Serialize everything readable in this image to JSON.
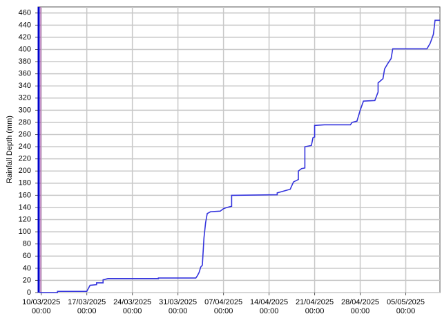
{
  "chart_data": {
    "type": "line",
    "y_label": "Rainfall Depth (mm)",
    "x": [
      "2025-03-09T18:00",
      "2025-03-12T12:00",
      "2025-03-12T12:00",
      "2025-03-17T00:00",
      "2025-03-17T12:00",
      "2025-03-18T12:00",
      "2025-03-18T12:00",
      "2025-03-19T12:00",
      "2025-03-19T12:00",
      "2025-03-20T06:00",
      "2025-03-28T00:00",
      "2025-03-28T00:00",
      "2025-04-02T18:00",
      "2025-04-03T00:00",
      "2025-04-03T06:00",
      "2025-04-03T12:00",
      "2025-04-03T18:00",
      "2025-04-04T00:00",
      "2025-04-04T06:00",
      "2025-04-04T12:00",
      "2025-04-05T00:00",
      "2025-04-06T12:00",
      "2025-04-07T00:00",
      "2025-04-07T12:00",
      "2025-04-08T06:00",
      "2025-04-08T06:00",
      "2025-04-15T06:00",
      "2025-04-15T06:00",
      "2025-04-16T06:00",
      "2025-04-17T06:00",
      "2025-04-17T18:00",
      "2025-04-18T12:00",
      "2025-04-18T12:00",
      "2025-04-19T00:00",
      "2025-04-19T12:00",
      "2025-04-19T12:00",
      "2025-04-20T12:00",
      "2025-04-20T18:00",
      "2025-04-21T00:00",
      "2025-04-21T00:00",
      "2025-04-22T12:00",
      "2025-04-26T12:00",
      "2025-04-26T18:00",
      "2025-04-27T12:00",
      "2025-04-28T00:00",
      "2025-04-28T12:00",
      "2025-04-30T06:00",
      "2025-04-30T18:00",
      "2025-04-30T18:00",
      "2025-05-01T12:00",
      "2025-05-01T18:00",
      "2025-05-02T06:00",
      "2025-05-02T18:00",
      "2025-05-03T00:00",
      "2025-05-08T06:00",
      "2025-05-08T18:00",
      "2025-05-09T06:00",
      "2025-05-09T12:00",
      "2025-05-10T06:00"
    ],
    "series": [
      {
        "color": "#3333dd",
        "values": [
          0,
          0,
          2,
          2,
          12,
          13,
          16,
          16,
          21,
          23,
          23,
          24,
          24,
          28,
          33,
          42,
          45,
          90,
          115,
          130,
          133,
          134,
          138,
          140,
          142,
          160,
          161,
          164,
          167,
          170,
          182,
          186,
          200,
          204,
          205,
          240,
          242,
          255,
          256,
          275,
          276,
          276,
          280,
          282,
          300,
          315,
          316,
          330,
          345,
          352,
          368,
          377,
          385,
          401,
          401,
          410,
          425,
          448,
          448
        ]
      }
    ],
    "xlim": [
      "2025-03-09T12:00",
      "2025-05-10T06:00"
    ],
    "xticks": [
      {
        "value": "2025-03-10T00:00",
        "label": "10/03/2025\n00:00"
      },
      {
        "value": "2025-03-17T00:00",
        "label": "17/03/2025\n00:00"
      },
      {
        "value": "2025-03-24T00:00",
        "label": "24/03/2025\n00:00"
      },
      {
        "value": "2025-03-31T00:00",
        "label": "31/03/2025\n00:00"
      },
      {
        "value": "2025-04-07T00:00",
        "label": "07/04/2025\n00:00"
      },
      {
        "value": "2025-04-14T00:00",
        "label": "14/04/2025\n00:00"
      },
      {
        "value": "2025-04-21T00:00",
        "label": "21/04/2025\n00:00"
      },
      {
        "value": "2025-04-28T00:00",
        "label": "28/04/2025\n00:00"
      },
      {
        "value": "2025-05-05T00:00",
        "label": "05/05/2025\n00:00"
      }
    ],
    "ylim": [
      0,
      470
    ],
    "yticks": [
      0,
      20,
      40,
      60,
      80,
      100,
      120,
      140,
      160,
      180,
      200,
      220,
      240,
      260,
      280,
      300,
      320,
      340,
      360,
      380,
      400,
      420,
      440,
      460
    ],
    "grid": true
  }
}
